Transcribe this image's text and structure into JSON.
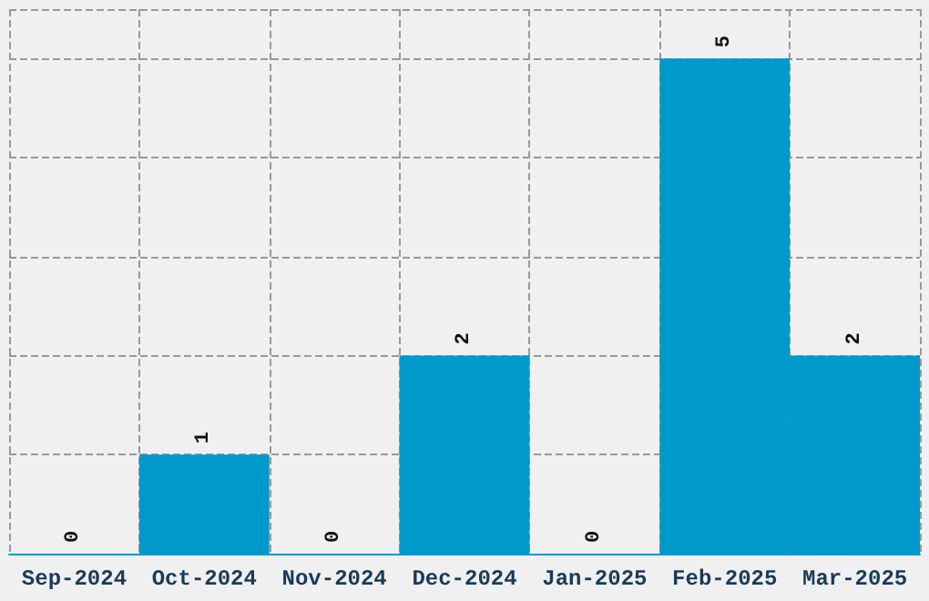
{
  "chart_data": {
    "type": "bar",
    "categories": [
      "Sep-2024",
      "Oct-2024",
      "Nov-2024",
      "Dec-2024",
      "Jan-2025",
      "Feb-2025",
      "Mar-2025"
    ],
    "values": [
      0,
      1,
      0,
      2,
      0,
      5,
      2
    ],
    "color": "#0099cc",
    "data_labels": true,
    "grid": true,
    "tick_labels": "x"
  }
}
